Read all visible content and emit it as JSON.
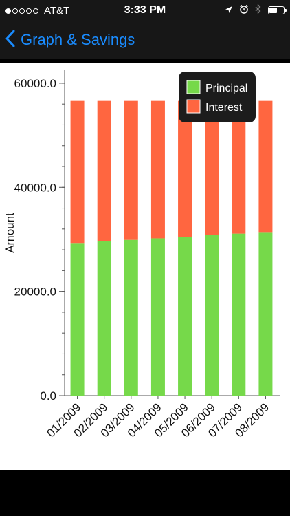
{
  "status_bar": {
    "signal_bars_filled": 1,
    "signal_bars_total": 5,
    "carrier": "AT&T",
    "time": "3:33 PM",
    "battery_level": 0.6
  },
  "nav": {
    "back_title": "Graph & Savings"
  },
  "colors": {
    "accent": "#1a8cff",
    "principal": "#76d94a",
    "interest": "#ff6640",
    "nav_bg": "#171717"
  },
  "chart_data": {
    "type": "bar",
    "stacked": true,
    "categories": [
      "01/2009",
      "02/2009",
      "03/2009",
      "04/2009",
      "05/2009",
      "06/2009",
      "07/2009",
      "08/2009"
    ],
    "series": [
      {
        "name": "Principal",
        "color": "#76d94a",
        "values": [
          29300,
          29600,
          29900,
          30200,
          30500,
          30800,
          31100,
          31400
        ]
      },
      {
        "name": "Interest",
        "color": "#ff6640",
        "values": [
          27300,
          27000,
          26700,
          26400,
          26100,
          25800,
          25500,
          25200
        ]
      }
    ],
    "ylabel": "Amount",
    "xlabel": "",
    "ylim": [
      0,
      62500
    ],
    "y_tick_labels": [
      "0.0",
      "20000.0",
      "40000.0",
      "60000.0"
    ],
    "y_tick_values": [
      0,
      20000,
      40000,
      60000
    ],
    "legend_position": "top-right",
    "grid": false
  }
}
